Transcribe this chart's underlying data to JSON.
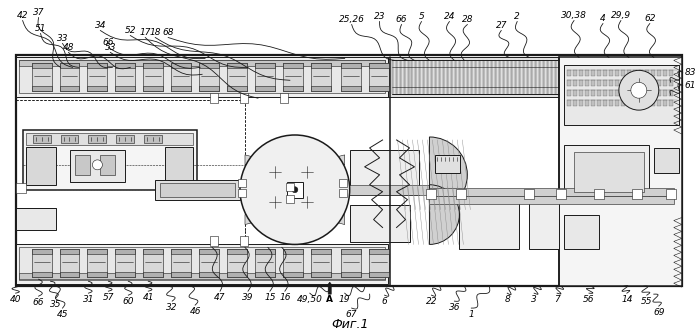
{
  "fig_label": "Фиг.1",
  "bg_color": "#ffffff",
  "lc": "#1a1a1a",
  "fig_width": 7.0,
  "fig_height": 3.33,
  "dpi": 100,
  "caption": "Фиг.1"
}
